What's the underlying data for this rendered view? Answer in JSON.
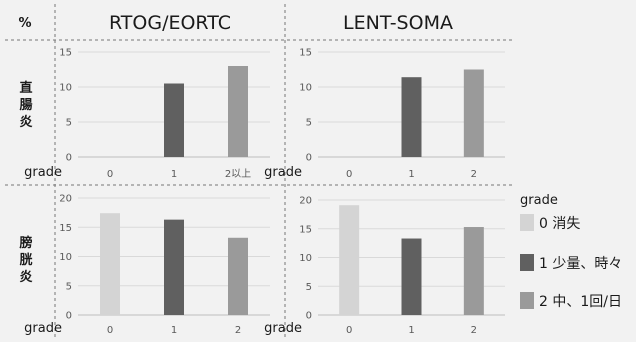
{
  "header": {
    "percent_label": "%",
    "col_titles": [
      "RTOG/EORTC",
      "LENT-SOMA"
    ],
    "row_titles": [
      "直腸炎",
      "膀胱炎"
    ]
  },
  "legend": {
    "title": "grade",
    "items": [
      {
        "label": "0 消失",
        "color": "#d4d4d4"
      },
      {
        "label": "1 少量、時々",
        "color": "#606060"
      },
      {
        "label": "2 中、1回/日",
        "color": "#9a9a9a"
      }
    ]
  },
  "chart_data": [
    {
      "type": "bar",
      "row": "直腸炎",
      "column": "RTOG/EORTC",
      "xlabel": "grade",
      "categories": [
        "0",
        "1",
        "2以上"
      ],
      "values": [
        0,
        10.5,
        13
      ],
      "ylim": [
        0,
        15
      ],
      "yticks": [
        0,
        5,
        10,
        15
      ]
    },
    {
      "type": "bar",
      "row": "直腸炎",
      "column": "LENT-SOMA",
      "xlabel": "grade",
      "categories": [
        "0",
        "1",
        "2"
      ],
      "values": [
        0,
        11.4,
        12.5
      ],
      "ylim": [
        0,
        15
      ],
      "yticks": [
        0,
        5,
        10,
        15
      ]
    },
    {
      "type": "bar",
      "row": "膀胱炎",
      "column": "RTOG/EORTC",
      "xlabel": "grade",
      "categories": [
        "0",
        "1",
        "2"
      ],
      "values": [
        17.4,
        16.3,
        13.2
      ],
      "ylim": [
        0,
        20
      ],
      "yticks": [
        0,
        5,
        10,
        15,
        20
      ]
    },
    {
      "type": "bar",
      "row": "膀胱炎",
      "column": "LENT-SOMA",
      "xlabel": "grade",
      "categories": [
        "0",
        "1",
        "2"
      ],
      "values": [
        19.1,
        13.3,
        15.3
      ],
      "ylim": [
        0,
        20
      ],
      "yticks": [
        0,
        5,
        10,
        15,
        20
      ]
    }
  ]
}
